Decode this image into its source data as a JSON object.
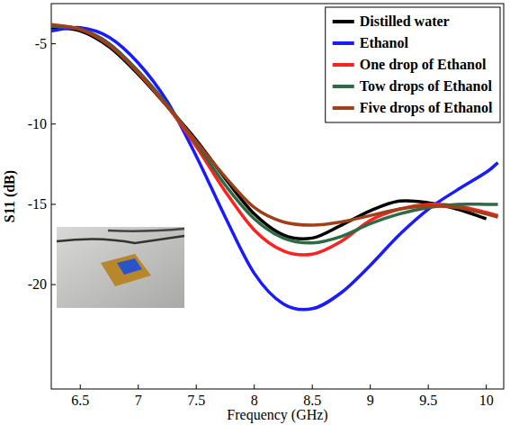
{
  "chart_data": {
    "type": "line",
    "x_label": "Frequency (GHz)",
    "y_label": "S11 (dB)",
    "x": [
      6.25,
      6.5,
      6.75,
      7,
      7.25,
      7.5,
      7.75,
      8,
      8.25,
      8.5,
      8.75,
      9,
      9.25,
      9.5,
      9.75,
      10,
      10.1
    ],
    "series": [
      {
        "name": "Distilled water",
        "color": "#000000",
        "values": [
          -4.0,
          -4.2,
          -5.2,
          -6.9,
          -8.9,
          -11.0,
          -13.4,
          -15.6,
          -16.9,
          -17.1,
          -16.3,
          -15.4,
          -14.8,
          -14.9,
          -15.3,
          -15.9,
          null
        ]
      },
      {
        "name": "Ethanol",
        "color": "#1a1aff",
        "values": [
          -4.2,
          -4.0,
          -4.6,
          -6.2,
          -8.6,
          -12.0,
          -15.8,
          -19.3,
          -21.2,
          -21.5,
          -20.5,
          -18.8,
          -16.9,
          -15.3,
          -14.1,
          -13.0,
          -12.4
        ]
      },
      {
        "name": "One drop of Ethanol",
        "color": "#ff2020",
        "values": [
          -3.9,
          -4.1,
          -5.0,
          -6.8,
          -8.9,
          -11.4,
          -14.2,
          -16.6,
          -17.9,
          -18.1,
          -17.3,
          -16.0,
          -15.3,
          -15.0,
          -15.1,
          -15.5,
          -15.7
        ]
      },
      {
        "name": "Tow drops of Ethanol",
        "color": "#2e6b45",
        "values": [
          -3.9,
          -4.1,
          -5.0,
          -6.7,
          -8.8,
          -11.2,
          -13.8,
          -15.9,
          -17.1,
          -17.4,
          -17.0,
          -16.2,
          -15.6,
          -15.2,
          -15.0,
          -15.0,
          -15.0
        ]
      },
      {
        "name": "Five drops of Ethanol",
        "color": "#a0401a",
        "values": [
          -3.8,
          -4.1,
          -5.1,
          -6.8,
          -8.9,
          -11.1,
          -13.3,
          -15.2,
          -16.1,
          -16.3,
          -16.1,
          -15.7,
          -15.3,
          -15.1,
          -15.2,
          -15.6,
          -15.8
        ]
      }
    ],
    "xlim": [
      6.25,
      10.15
    ],
    "ylim": [
      -26.5,
      -2.5
    ],
    "xticks": [
      6.5,
      7,
      7.5,
      8,
      8.5,
      9,
      9.5,
      10
    ],
    "yticks": [
      -20,
      -15,
      -10,
      -5
    ],
    "legend": "upper right",
    "grid": false
  }
}
